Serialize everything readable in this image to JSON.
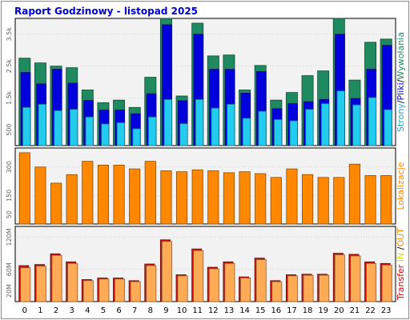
{
  "title": "Raport Godzinowy -  listopad 2025",
  "chart_data": [
    {
      "type": "bar",
      "name": "hits-panel",
      "categories": [
        "0",
        "1",
        "2",
        "3",
        "4",
        "5",
        "6",
        "7",
        "8",
        "9",
        "10",
        "11",
        "12",
        "13",
        "14",
        "15",
        "16",
        "17",
        "18",
        "19",
        "20",
        "21",
        "22",
        "23"
      ],
      "ylim": [
        0,
        4000
      ],
      "ticks": [
        "500",
        "1.5k",
        "2.5k",
        "3.5k"
      ],
      "tick_values": [
        500,
        1500,
        2500,
        3500
      ],
      "right_label_parts": [
        "Strony",
        "/",
        "Pliki",
        "/",
        "Wywołania"
      ],
      "series": [
        {
          "name": "Wywołania",
          "color": "#1f8a5f",
          "values": [
            2750,
            2600,
            2500,
            2450,
            1750,
            1350,
            1430,
            1200,
            2150,
            4000,
            1560,
            3850,
            2820,
            2850,
            1750,
            2520,
            1430,
            1670,
            2200,
            2350,
            4000,
            2060,
            3250,
            3350
          ]
        },
        {
          "name": "Pliki",
          "color": "#0000dd",
          "values": [
            2300,
            1940,
            2400,
            1960,
            1420,
            1120,
            1120,
            1000,
            1630,
            3800,
            1410,
            3500,
            2400,
            2400,
            1650,
            2330,
            1160,
            1320,
            1380,
            1450,
            3500,
            1480,
            2400,
            3150
          ]
        },
        {
          "name": "Strony",
          "color": "#22ccee",
          "values": [
            1200,
            1300,
            1100,
            1140,
            900,
            680,
            720,
            530,
            900,
            1450,
            690,
            1450,
            1180,
            1300,
            860,
            1080,
            820,
            780,
            1140,
            1320,
            1720,
            1280,
            1510,
            1130
          ]
        }
      ]
    },
    {
      "type": "bar",
      "name": "visits-panel",
      "categories": [
        "0",
        "1",
        "2",
        "3",
        "4",
        "5",
        "6",
        "7",
        "8",
        "9",
        "10",
        "11",
        "12",
        "13",
        "14",
        "15",
        "16",
        "17",
        "18",
        "19",
        "20",
        "21",
        "22",
        "23"
      ],
      "ylim": [
        0,
        400
      ],
      "ticks": [
        "50",
        "150",
        "300"
      ],
      "tick_values": [
        50,
        150,
        300
      ],
      "right_label_parts": [
        "Lokalizacje"
      ],
      "series": [
        {
          "name": "Lokalizacje",
          "color": "#ff8800",
          "values": [
            375,
            300,
            215,
            260,
            330,
            310,
            310,
            290,
            330,
            280,
            275,
            285,
            280,
            270,
            275,
            265,
            245,
            290,
            260,
            245,
            245,
            315,
            255,
            255
          ]
        }
      ]
    },
    {
      "type": "bar",
      "name": "transfer-panel",
      "categories": [
        "0",
        "1",
        "2",
        "3",
        "4",
        "5",
        "6",
        "7",
        "8",
        "9",
        "10",
        "11",
        "12",
        "13",
        "14",
        "15",
        "16",
        "17",
        "18",
        "19",
        "20",
        "21",
        "22",
        "23"
      ],
      "ylim": [
        0,
        140
      ],
      "ticks": [
        "20M",
        "60M",
        "120M"
      ],
      "tick_values": [
        20,
        60,
        120
      ],
      "right_label_parts": [
        "Transfer",
        " ",
        "IN",
        " ",
        "/",
        "OUT"
      ],
      "series": [
        {
          "name": "Transfer",
          "color": "#cc1111",
          "values": [
            67,
            69,
            89,
            74,
            41,
            44,
            44,
            39,
            70,
            115,
            50,
            98,
            64,
            74,
            46,
            81,
            39,
            50,
            51,
            51,
            90,
            88,
            74,
            71
          ]
        },
        {
          "name": "OUT",
          "color": "#ffaa55",
          "values": [
            63,
            66,
            86,
            71,
            39,
            42,
            42,
            37,
            67,
            112,
            48,
            95,
            61,
            71,
            44,
            78,
            37,
            48,
            49,
            49,
            87,
            85,
            71,
            68
          ]
        }
      ]
    }
  ]
}
